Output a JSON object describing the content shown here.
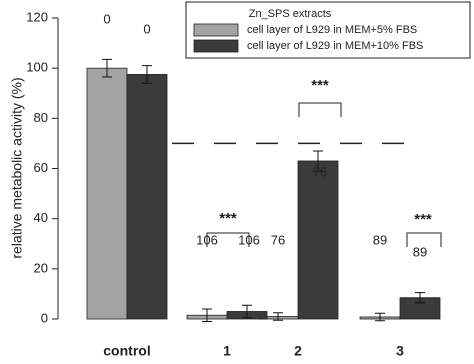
{
  "chart_data": {
    "type": "bar",
    "y_label": "relative metabolic activity (%)",
    "categories": [
      "control",
      "1",
      "2",
      "3"
    ],
    "ylim": [
      0,
      120
    ],
    "yticks": [
      0,
      20,
      40,
      60,
      80,
      100,
      120
    ],
    "legend_title": "Zn_SPS extracts",
    "legend": "top-right",
    "reference_line": 70,
    "series": [
      {
        "name": "cell layer of L929 in MEM+5% FBS",
        "color": "#a3a3a3",
        "values": [
          100,
          1.5,
          1,
          0.8
        ],
        "errors": [
          3.5,
          2.5,
          1.5,
          1.5
        ]
      },
      {
        "name": "cell layer of L929 in MEM+10% FBS",
        "color": "#3b3b3b",
        "values": [
          97.5,
          3,
          63,
          8.5
        ],
        "errors": [
          3.5,
          2.5,
          4,
          2
        ]
      }
    ],
    "annotations": [
      "0",
      "0",
      "106",
      "106",
      "76",
      "76",
      "89",
      "89",
      "***",
      "***",
      "***"
    ]
  }
}
